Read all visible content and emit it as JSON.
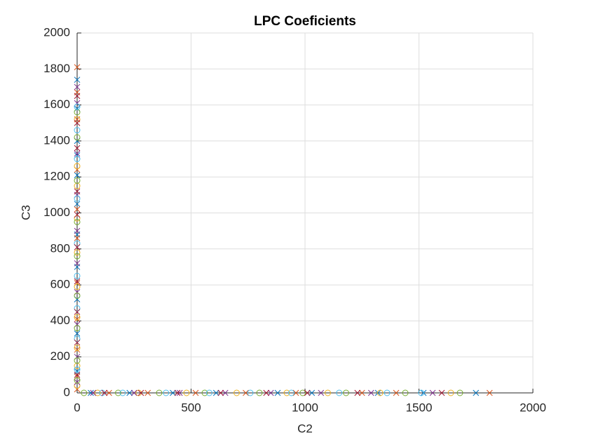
{
  "chart_data": {
    "type": "scatter",
    "title": "LPC Coeficients",
    "x_label": "C2",
    "y_label": "C3",
    "xlim": [
      0,
      2000
    ],
    "ylim": [
      0,
      2000
    ],
    "xticks": [
      0,
      500,
      1000,
      1500,
      2000
    ],
    "yticks": [
      0,
      200,
      400,
      600,
      800,
      1000,
      1200,
      1400,
      1600,
      1800,
      2000
    ],
    "grid": true,
    "series": [
      {
        "color": "#0072bd",
        "marker": "x",
        "x": [
          1750,
          1520,
          1320,
          1030,
          880,
          610,
          420,
          230,
          60,
          0,
          0,
          0,
          0,
          0,
          0,
          0,
          0,
          0,
          0,
          0
        ],
        "y": [
          0,
          0,
          0,
          0,
          0,
          0,
          0,
          0,
          0,
          1740,
          1580,
          1400,
          1320,
          1210,
          1050,
          880,
          700,
          520,
          330,
          120
        ]
      },
      {
        "color": "#d95319",
        "marker": "x",
        "x": [
          1810,
          1400,
          1250,
          960,
          740,
          520,
          310,
          140,
          0,
          0,
          0,
          0,
          0,
          0,
          0,
          0,
          0,
          0,
          0
        ],
        "y": [
          0,
          0,
          0,
          0,
          0,
          0,
          0,
          0,
          1810,
          1670,
          1520,
          1240,
          1020,
          860,
          610,
          410,
          240,
          90,
          20
        ]
      },
      {
        "color": "#edb120",
        "marker": "o",
        "x": [
          1640,
          1330,
          1100,
          920,
          700,
          480,
          270,
          90,
          0,
          0,
          0,
          0,
          0,
          0,
          0,
          0,
          0,
          0
        ],
        "y": [
          0,
          0,
          0,
          0,
          0,
          0,
          0,
          0,
          1520,
          1260,
          1150,
          970,
          780,
          590,
          420,
          250,
          150,
          40
        ]
      },
      {
        "color": "#7e2f8e",
        "marker": "x",
        "x": [
          1560,
          1290,
          1070,
          850,
          650,
          450,
          250,
          70,
          0,
          0,
          0,
          0,
          0,
          0,
          0,
          0,
          0,
          0
        ],
        "y": [
          0,
          0,
          0,
          0,
          0,
          0,
          0,
          0,
          1700,
          1610,
          1330,
          1100,
          900,
          720,
          560,
          380,
          200,
          60
        ]
      },
      {
        "color": "#77ac30",
        "marker": "o",
        "x": [
          1680,
          1440,
          1180,
          990,
          800,
          560,
          360,
          180,
          30,
          0,
          0,
          0,
          0,
          0,
          0,
          0,
          0,
          0
        ],
        "y": [
          0,
          0,
          0,
          0,
          0,
          0,
          0,
          0,
          0,
          1560,
          1420,
          1180,
          950,
          760,
          540,
          360,
          180,
          70
        ]
      },
      {
        "color": "#4dbeee",
        "marker": "o",
        "x": [
          1510,
          1360,
          1150,
          940,
          760,
          580,
          390,
          200,
          110,
          0,
          0,
          0,
          0,
          0,
          0,
          0,
          0,
          0
        ],
        "y": [
          0,
          0,
          0,
          0,
          0,
          0,
          0,
          0,
          0,
          1590,
          1460,
          1300,
          1080,
          830,
          650,
          470,
          300,
          130
        ]
      },
      {
        "color": "#a2142f",
        "marker": "x",
        "x": [
          1600,
          1230,
          1010,
          830,
          630,
          440,
          280,
          120,
          0,
          0,
          0,
          0,
          0,
          0,
          0,
          0,
          0,
          0
        ],
        "y": [
          0,
          0,
          0,
          0,
          0,
          0,
          0,
          0,
          1650,
          1500,
          1360,
          1120,
          990,
          810,
          620,
          450,
          280,
          100
        ]
      }
    ]
  }
}
